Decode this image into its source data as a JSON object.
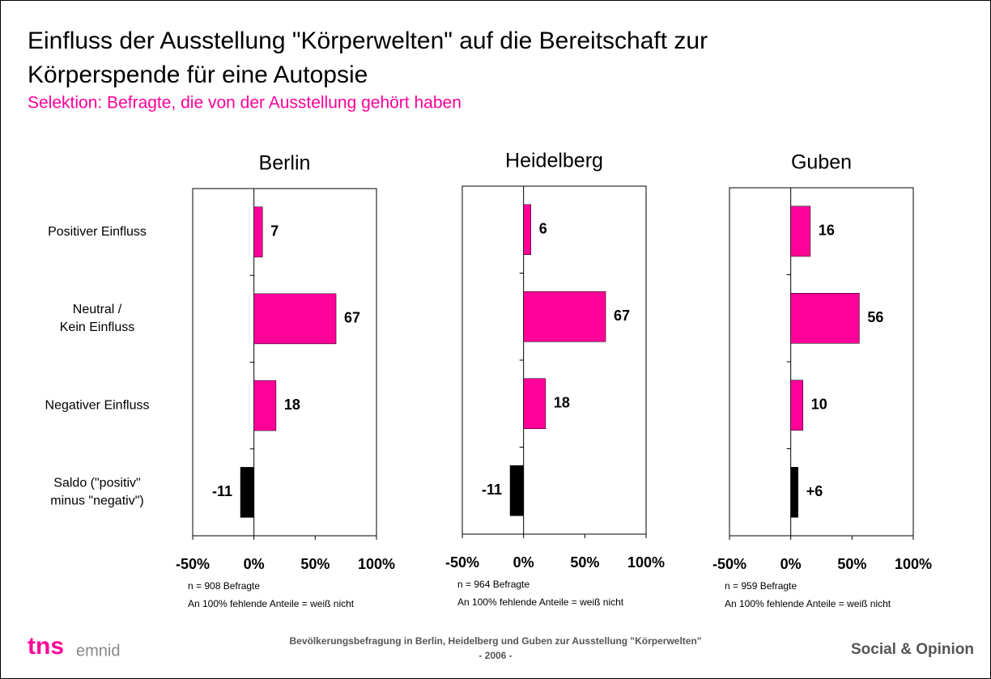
{
  "header": {
    "title": [
      "Einfluss der Ausstellung \"Körperwelten\" auf die Bereitschaft zur",
      "Körperspende für eine Autopsie"
    ],
    "subtitle": "Selektion: Befragte, die von der Ausstellung gehört haben"
  },
  "chart_data": [
    {
      "type": "bar",
      "orientation": "horizontal",
      "title": "Berlin",
      "categories": [
        [
          "Positiver Einfluss"
        ],
        [
          "Neutral /",
          "Kein Einfluss"
        ],
        [
          "Negativer Einfluss"
        ],
        [
          "Saldo (\"positiv\"",
          "minus \"negativ\")"
        ]
      ],
      "values": [
        7,
        67,
        18,
        -11
      ],
      "colors": [
        "#ff0099",
        "#ff0099",
        "#ff0099",
        "#000000"
      ],
      "xlim": [
        -50,
        100
      ],
      "xticks": [
        {
          "value": -50,
          "label": "-50%"
        },
        {
          "value": 0,
          "label": "0%"
        },
        {
          "value": 50,
          "label": "50%"
        },
        {
          "value": 100,
          "label": "100%"
        }
      ],
      "notes": [
        "n = 908 Befragte",
        "An 100% fehlende Anteile = weiß nicht"
      ]
    },
    {
      "type": "bar",
      "orientation": "horizontal",
      "title": "Heidelberg",
      "values": [
        6,
        67,
        18,
        -11
      ],
      "colors": [
        "#ff0099",
        "#ff0099",
        "#ff0099",
        "#000000"
      ],
      "xlim": [
        -50,
        100
      ],
      "xticks": [
        {
          "value": -50,
          "label": "-50%"
        },
        {
          "value": 0,
          "label": "0%"
        },
        {
          "value": 50,
          "label": "50%"
        },
        {
          "value": 100,
          "label": "100%"
        }
      ],
      "notes": [
        "n = 964 Befragte",
        "An 100% fehlende Anteile = weiß nicht"
      ]
    },
    {
      "type": "bar",
      "orientation": "horizontal",
      "title": "Guben",
      "values": [
        16,
        56,
        10,
        6
      ],
      "value_labels": [
        "16",
        "56",
        "10",
        "+6"
      ],
      "colors": [
        "#ff0099",
        "#ff0099",
        "#ff0099",
        "#000000"
      ],
      "xlim": [
        -50,
        100
      ],
      "xticks": [
        {
          "value": -50,
          "label": "-50%"
        },
        {
          "value": 0,
          "label": "0%"
        },
        {
          "value": 50,
          "label": "50%"
        },
        {
          "value": 100,
          "label": "100%"
        }
      ],
      "notes": [
        "n = 959 Befragte",
        "An 100% fehlende Anteile = weiß nicht"
      ]
    }
  ],
  "footer": {
    "logo": [
      "tns",
      "emnid"
    ],
    "source": [
      "Bevölkerungsbefragung in Berlin, Heidelberg und Guben zur Ausstellung \"Körperwelten\"",
      "- 2006 -"
    ],
    "division": "Social & Opinion"
  }
}
